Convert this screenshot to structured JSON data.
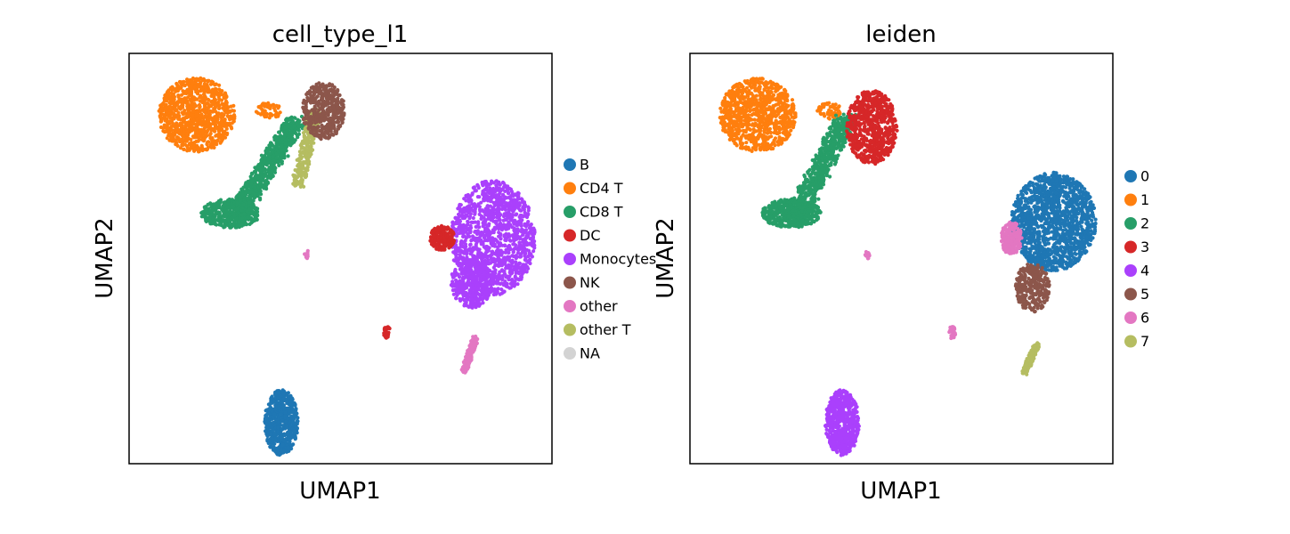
{
  "chart_data": [
    {
      "type": "scatter",
      "title": "cell_type_l1",
      "xlabel": "UMAP1",
      "ylabel": "UMAP2",
      "ticks": "none",
      "grid": false,
      "legend_position": "right",
      "legend": [
        {
          "label": "B",
          "color": "#1f77b4"
        },
        {
          "label": "CD4 T",
          "color": "#ff7f0e"
        },
        {
          "label": "CD8 T",
          "color": "#279e68"
        },
        {
          "label": "DC",
          "color": "#d62728"
        },
        {
          "label": "Monocytes",
          "color": "#aa40fc"
        },
        {
          "label": "NK",
          "color": "#8c564b"
        },
        {
          "label": "other",
          "color": "#e377c2"
        },
        {
          "label": "other T",
          "color": "#b5bd61"
        },
        {
          "label": "NA",
          "color": "#d3d3d3"
        }
      ],
      "clusters": [
        {
          "label": "CD4 T",
          "shape": "blob",
          "cx": 0.16,
          "cy": 0.85,
          "rx": 0.09,
          "ry": 0.09,
          "n": 900
        },
        {
          "label": "CD4 T",
          "shape": "blob",
          "cx": 0.33,
          "cy": 0.86,
          "rx": 0.03,
          "ry": 0.02,
          "n": 60
        },
        {
          "label": "CD8 T",
          "shape": "strip",
          "x1": 0.25,
          "y1": 0.6,
          "x2": 0.4,
          "y2": 0.84,
          "w": 0.05,
          "n": 700
        },
        {
          "label": "CD8 T",
          "shape": "blob",
          "cx": 0.24,
          "cy": 0.61,
          "rx": 0.07,
          "ry": 0.035,
          "n": 400
        },
        {
          "label": "other T",
          "shape": "strip",
          "x1": 0.4,
          "y1": 0.68,
          "x2": 0.44,
          "y2": 0.86,
          "w": 0.03,
          "n": 300
        },
        {
          "label": "NK",
          "shape": "blob",
          "cx": 0.46,
          "cy": 0.86,
          "rx": 0.05,
          "ry": 0.07,
          "n": 450
        },
        {
          "label": "Monocytes",
          "shape": "blob",
          "cx": 0.86,
          "cy": 0.55,
          "rx": 0.1,
          "ry": 0.14,
          "n": 1300
        },
        {
          "label": "Monocytes",
          "shape": "blob",
          "cx": 0.81,
          "cy": 0.44,
          "rx": 0.05,
          "ry": 0.06,
          "n": 300
        },
        {
          "label": "DC",
          "shape": "blob",
          "cx": 0.74,
          "cy": 0.55,
          "rx": 0.03,
          "ry": 0.03,
          "n": 200
        },
        {
          "label": "DC",
          "shape": "blob",
          "cx": 0.61,
          "cy": 0.32,
          "rx": 0.008,
          "ry": 0.015,
          "n": 40
        },
        {
          "label": "other",
          "shape": "strip",
          "x1": 0.79,
          "y1": 0.22,
          "x2": 0.82,
          "y2": 0.31,
          "w": 0.015,
          "n": 150
        },
        {
          "label": "other",
          "shape": "blob",
          "cx": 0.42,
          "cy": 0.51,
          "rx": 0.006,
          "ry": 0.01,
          "n": 15
        },
        {
          "label": "B",
          "shape": "blob",
          "cx": 0.36,
          "cy": 0.1,
          "rx": 0.04,
          "ry": 0.08,
          "n": 600
        }
      ]
    },
    {
      "type": "scatter",
      "title": "leiden",
      "xlabel": "UMAP1",
      "ylabel": "UMAP2",
      "ticks": "none",
      "grid": false,
      "legend_position": "right",
      "legend": [
        {
          "label": "0",
          "color": "#1f77b4"
        },
        {
          "label": "1",
          "color": "#ff7f0e"
        },
        {
          "label": "2",
          "color": "#279e68"
        },
        {
          "label": "3",
          "color": "#d62728"
        },
        {
          "label": "4",
          "color": "#aa40fc"
        },
        {
          "label": "5",
          "color": "#8c564b"
        },
        {
          "label": "6",
          "color": "#e377c2"
        },
        {
          "label": "7",
          "color": "#b5bd61"
        }
      ],
      "clusters": [
        {
          "label": "1",
          "shape": "blob",
          "cx": 0.16,
          "cy": 0.85,
          "rx": 0.09,
          "ry": 0.09,
          "n": 900
        },
        {
          "label": "1",
          "shape": "blob",
          "cx": 0.33,
          "cy": 0.86,
          "rx": 0.03,
          "ry": 0.02,
          "n": 60
        },
        {
          "label": "2",
          "shape": "strip",
          "x1": 0.25,
          "y1": 0.6,
          "x2": 0.37,
          "y2": 0.84,
          "w": 0.05,
          "n": 700
        },
        {
          "label": "2",
          "shape": "blob",
          "cx": 0.24,
          "cy": 0.61,
          "rx": 0.07,
          "ry": 0.035,
          "n": 400
        },
        {
          "label": "3",
          "shape": "blob",
          "cx": 0.43,
          "cy": 0.82,
          "rx": 0.06,
          "ry": 0.09,
          "n": 700
        },
        {
          "label": "0",
          "shape": "blob",
          "cx": 0.86,
          "cy": 0.59,
          "rx": 0.1,
          "ry": 0.12,
          "n": 1400
        },
        {
          "label": "6",
          "shape": "blob",
          "cx": 0.76,
          "cy": 0.55,
          "rx": 0.025,
          "ry": 0.04,
          "n": 180
        },
        {
          "label": "5",
          "shape": "blob",
          "cx": 0.81,
          "cy": 0.43,
          "rx": 0.04,
          "ry": 0.06,
          "n": 300
        },
        {
          "label": "7",
          "shape": "strip",
          "x1": 0.79,
          "y1": 0.22,
          "x2": 0.82,
          "y2": 0.29,
          "w": 0.015,
          "n": 150
        },
        {
          "label": "6",
          "shape": "blob",
          "cx": 0.62,
          "cy": 0.32,
          "rx": 0.008,
          "ry": 0.015,
          "n": 40
        },
        {
          "label": "6",
          "shape": "blob",
          "cx": 0.42,
          "cy": 0.51,
          "rx": 0.006,
          "ry": 0.01,
          "n": 15
        },
        {
          "label": "4",
          "shape": "blob",
          "cx": 0.36,
          "cy": 0.1,
          "rx": 0.04,
          "ry": 0.08,
          "n": 600
        }
      ]
    }
  ]
}
